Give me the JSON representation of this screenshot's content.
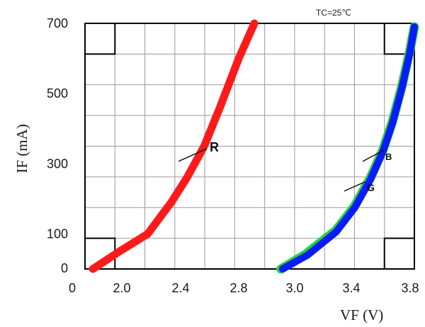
{
  "chart_data": {
    "type": "line",
    "title": "",
    "note": "TC=25℃",
    "xlabel": "VF (V)",
    "ylabel": "IF (mA)",
    "xlim": [
      1.7,
      3.8
    ],
    "ylim": [
      0,
      700
    ],
    "x_tick_labels": [
      "0",
      "2.0",
      "2.4",
      "2.8",
      "3.0",
      "3.4",
      "3.8"
    ],
    "y_tick_labels": [
      "0",
      "100",
      "300",
      "500",
      "700"
    ],
    "grid": true,
    "series": [
      {
        "name": "R",
        "color": "#ff1a1a",
        "points": [
          [
            1.75,
            0
          ],
          [
            1.92,
            50
          ],
          [
            2.1,
            100
          ],
          [
            2.25,
            190
          ],
          [
            2.35,
            260
          ],
          [
            2.46,
            350
          ],
          [
            2.56,
            460
          ],
          [
            2.68,
            600
          ],
          [
            2.78,
            700
          ]
        ]
      },
      {
        "name": "G",
        "color": "#22d43a",
        "points": [
          [
            2.95,
            0
          ],
          [
            3.1,
            40
          ],
          [
            3.3,
            110
          ],
          [
            3.42,
            180
          ],
          [
            3.52,
            260
          ],
          [
            3.6,
            340
          ],
          [
            3.66,
            420
          ],
          [
            3.72,
            520
          ],
          [
            3.77,
            620
          ],
          [
            3.8,
            690
          ]
        ]
      },
      {
        "name": "B",
        "color": "#0a1aff",
        "points": [
          [
            2.96,
            0
          ],
          [
            3.12,
            40
          ],
          [
            3.3,
            105
          ],
          [
            3.42,
            175
          ],
          [
            3.52,
            255
          ],
          [
            3.6,
            335
          ],
          [
            3.66,
            415
          ],
          [
            3.72,
            515
          ],
          [
            3.77,
            615
          ],
          [
            3.8,
            690
          ]
        ]
      }
    ],
    "annotations": [
      {
        "text": "R",
        "target": "R"
      },
      {
        "text": "B",
        "target": "B"
      },
      {
        "text": "G",
        "target": "G"
      }
    ]
  }
}
